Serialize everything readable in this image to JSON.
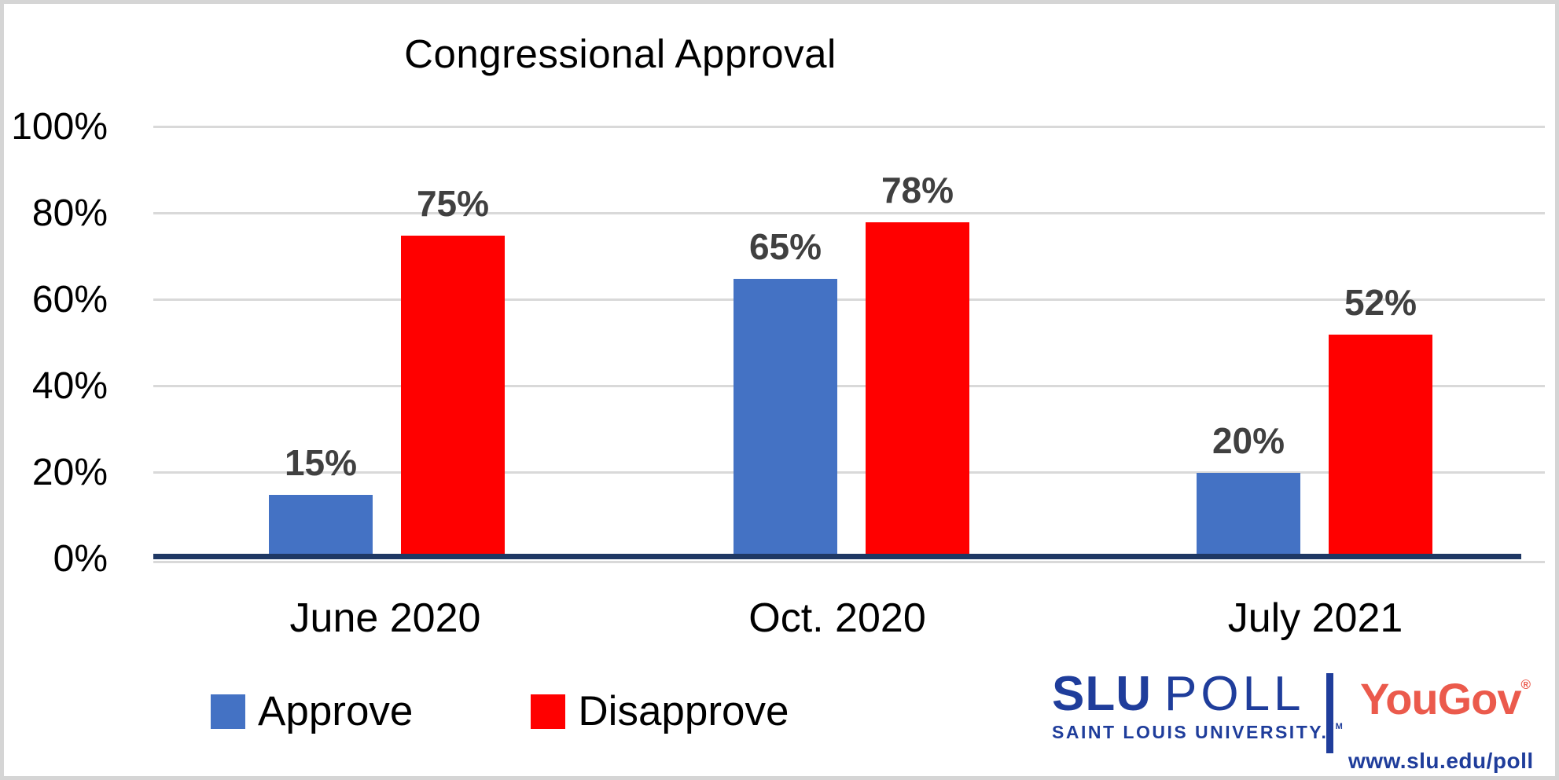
{
  "chart_data": {
    "type": "bar",
    "title": "Congressional Approval",
    "categories": [
      "June 2020",
      "Oct. 2020",
      "July 2021"
    ],
    "series": [
      {
        "name": "Approve",
        "color": "#4472C4",
        "values": [
          15,
          65,
          20
        ]
      },
      {
        "name": "Disapprove",
        "color": "#FF0000",
        "values": [
          75,
          78,
          52
        ]
      }
    ],
    "data_labels": [
      [
        "15%",
        "65%",
        "20%"
      ],
      [
        "75%",
        "78%",
        "52%"
      ]
    ],
    "yticks": [
      {
        "label": "100%",
        "value": 100
      },
      {
        "label": "80%",
        "value": 80
      },
      {
        "label": "60%",
        "value": 60
      },
      {
        "label": "40%",
        "value": 40
      },
      {
        "label": "20%",
        "value": 20
      },
      {
        "label": "0%",
        "value": 0
      }
    ],
    "ylim": [
      0,
      100
    ],
    "grid": true,
    "legend_position": "bottom-left",
    "colors": {
      "approve": "#4472C4",
      "disapprove": "#FF0000",
      "axis_line": "#1F3864",
      "gridline": "#D9D9D9",
      "data_label": "#404040"
    }
  },
  "branding": {
    "slu_wordmark": "SLU",
    "slu_poll": "POLL",
    "slu_subtitle": "SAINT LOUIS UNIVERSITY.",
    "slu_trademark": "TM",
    "yougov": "YouGov",
    "yougov_registered": "®",
    "website": "www.slu.edu/poll",
    "slu_blue": "#1F3D9B",
    "yougov_red": "#EB5A4C"
  }
}
